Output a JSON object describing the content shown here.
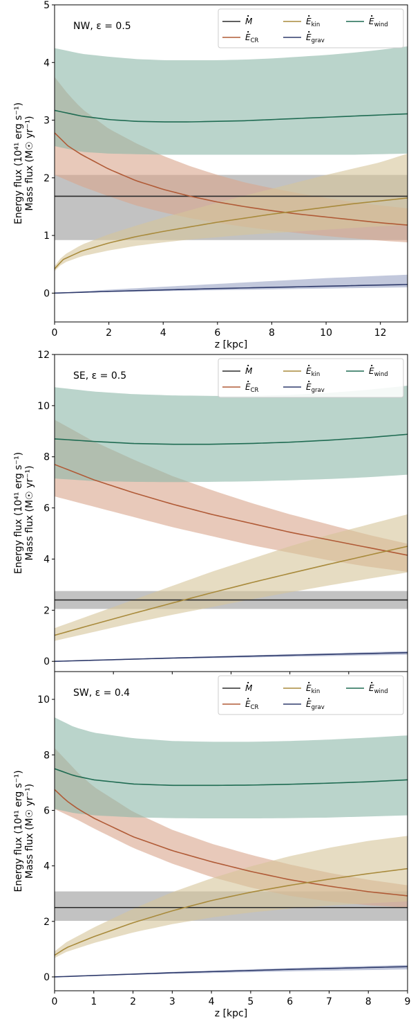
{
  "chart_data": [
    {
      "type": "line",
      "annotation": "NW, ε = 0.5",
      "xlabel": "z [kpc]",
      "ylabel_line1": "Energy flux (10⁴¹ erg s⁻¹)",
      "ylabel_line2": "Mass flux (M☉ yr⁻¹)",
      "xlim": [
        0,
        13
      ],
      "ylim": [
        -0.5,
        5
      ],
      "xticks": [
        0,
        2,
        4,
        6,
        8,
        10,
        12
      ],
      "yticks": [
        0,
        1,
        2,
        3,
        4,
        5
      ],
      "show_xticklabels": true,
      "grid": false,
      "legend_position": "top-right",
      "series": [
        {
          "key": "mdot",
          "name": "Ṁ",
          "color": "#2b2b2b",
          "band_color": "#999999",
          "x": [
            0,
            13
          ],
          "y": [
            1.68,
            1.68
          ],
          "lower": [
            0.92,
            0.92
          ],
          "upper": [
            2.05,
            2.05
          ]
        },
        {
          "key": "ecr",
          "name": "Ė_CR",
          "color": "#b05a36",
          "band_color": "#d9a58c",
          "x": [
            0,
            0.5,
            1,
            2,
            3,
            4,
            5,
            6,
            7,
            8,
            9,
            10,
            11,
            12,
            13
          ],
          "y": [
            2.78,
            2.55,
            2.4,
            2.15,
            1.95,
            1.8,
            1.68,
            1.58,
            1.5,
            1.43,
            1.37,
            1.32,
            1.27,
            1.22,
            1.18
          ],
          "lower": [
            2.05,
            1.95,
            1.85,
            1.68,
            1.52,
            1.4,
            1.3,
            1.22,
            1.15,
            1.09,
            1.04,
            0.99,
            0.95,
            0.91,
            0.88
          ],
          "upper": [
            3.75,
            3.45,
            3.2,
            2.85,
            2.6,
            2.38,
            2.2,
            2.05,
            1.92,
            1.82,
            1.73,
            1.65,
            1.58,
            1.52,
            1.47
          ]
        },
        {
          "key": "ekin",
          "name": "Ė_kin",
          "color": "#a88a3b",
          "band_color": "#d6c59a",
          "x": [
            0,
            0.3,
            1,
            2,
            3,
            4,
            5,
            6,
            7,
            8,
            9,
            10,
            11,
            12,
            13
          ],
          "y": [
            0.42,
            0.58,
            0.73,
            0.87,
            0.98,
            1.07,
            1.15,
            1.23,
            1.3,
            1.37,
            1.43,
            1.49,
            1.55,
            1.6,
            1.65
          ],
          "lower": [
            0.38,
            0.52,
            0.64,
            0.74,
            0.82,
            0.88,
            0.93,
            0.97,
            1.01,
            1.04,
            1.07,
            1.1,
            1.13,
            1.16,
            1.18
          ],
          "upper": [
            0.47,
            0.65,
            0.84,
            1.02,
            1.17,
            1.31,
            1.44,
            1.57,
            1.69,
            1.81,
            1.93,
            2.05,
            2.16,
            2.27,
            2.42
          ]
        },
        {
          "key": "egrav",
          "name": "Ė_grav",
          "color": "#2e3a6b",
          "band_color": "#9aa3c4",
          "x": [
            0,
            2,
            4,
            6,
            8,
            10,
            13
          ],
          "y": [
            0,
            0.03,
            0.055,
            0.08,
            0.1,
            0.12,
            0.15
          ],
          "lower": [
            0,
            0.02,
            0.035,
            0.05,
            0.065,
            0.08,
            0.1
          ],
          "upper": [
            0,
            0.06,
            0.11,
            0.16,
            0.21,
            0.26,
            0.32
          ]
        },
        {
          "key": "ewind",
          "name": "Ė_wind",
          "color": "#1f6b52",
          "band_color": "#8cb8a8",
          "x": [
            0,
            1,
            2,
            3,
            4,
            5,
            6,
            7,
            8,
            9,
            10,
            11,
            12,
            13
          ],
          "y": [
            3.17,
            3.07,
            3.01,
            2.98,
            2.97,
            2.97,
            2.98,
            2.99,
            3.01,
            3.03,
            3.05,
            3.07,
            3.09,
            3.11
          ],
          "lower": [
            2.55,
            2.45,
            2.42,
            2.41,
            2.4,
            2.4,
            2.4,
            2.4,
            2.4,
            2.4,
            2.4,
            2.4,
            2.41,
            2.42
          ],
          "upper": [
            4.25,
            4.15,
            4.1,
            4.06,
            4.04,
            4.04,
            4.04,
            4.05,
            4.07,
            4.1,
            4.13,
            4.17,
            4.22,
            4.28
          ]
        }
      ]
    },
    {
      "type": "line",
      "annotation": "SE, ε = 0.5",
      "xlabel": "",
      "ylabel_line1": "Energy flux (10⁴¹ erg s⁻¹)",
      "ylabel_line2": "Mass flux (M☉ yr⁻¹)",
      "xlim": [
        0,
        9
      ],
      "ylim": [
        -0.4,
        12
      ],
      "xticks": [
        0,
        1.5,
        3,
        4.5,
        6,
        7.5,
        9
      ],
      "yticks": [
        0,
        2,
        4,
        6,
        8,
        10,
        12
      ],
      "show_xticklabels": false,
      "grid": false,
      "legend_position": "top-right",
      "series": [
        {
          "key": "mdot",
          "name": "Ṁ",
          "color": "#2b2b2b",
          "band_color": "#999999",
          "x": [
            0,
            9
          ],
          "y": [
            2.4,
            2.4
          ],
          "lower": [
            2.05,
            2.05
          ],
          "upper": [
            2.75,
            2.75
          ]
        },
        {
          "key": "ecr",
          "name": "Ė_CR",
          "color": "#b05a36",
          "band_color": "#d9a58c",
          "x": [
            0,
            1,
            2,
            3,
            4,
            5,
            6,
            7,
            8,
            9
          ],
          "y": [
            7.7,
            7.1,
            6.6,
            6.15,
            5.75,
            5.4,
            5.05,
            4.75,
            4.45,
            4.15
          ],
          "lower": [
            6.45,
            6.05,
            5.65,
            5.25,
            4.9,
            4.55,
            4.25,
            3.95,
            3.7,
            3.5
          ],
          "upper": [
            9.45,
            8.6,
            7.9,
            7.25,
            6.7,
            6.2,
            5.75,
            5.35,
            4.95,
            4.6
          ]
        },
        {
          "key": "ekin",
          "name": "Ė_kin",
          "color": "#a88a3b",
          "band_color": "#d6c59a",
          "x": [
            0,
            1,
            2,
            3,
            4,
            5,
            6,
            7,
            8,
            9
          ],
          "y": [
            1.02,
            1.45,
            1.87,
            2.28,
            2.68,
            3.07,
            3.44,
            3.8,
            4.15,
            4.5
          ],
          "lower": [
            0.8,
            1.15,
            1.5,
            1.82,
            2.12,
            2.42,
            2.7,
            2.97,
            3.23,
            3.48
          ],
          "upper": [
            1.3,
            1.85,
            2.4,
            2.95,
            3.5,
            4.0,
            4.5,
            4.95,
            5.35,
            5.75
          ]
        },
        {
          "key": "egrav",
          "name": "Ė_grav",
          "color": "#2e3a6b",
          "band_color": "#9aa3c4",
          "x": [
            0,
            3,
            6,
            9
          ],
          "y": [
            0,
            0.13,
            0.24,
            0.34
          ],
          "lower": [
            0,
            0.1,
            0.18,
            0.26
          ],
          "upper": [
            0,
            0.15,
            0.28,
            0.4
          ]
        },
        {
          "key": "ewind",
          "name": "Ė_wind",
          "color": "#1f6b52",
          "band_color": "#8cb8a8",
          "x": [
            0,
            1,
            2,
            3,
            4,
            5,
            6,
            7,
            8,
            9
          ],
          "y": [
            8.7,
            8.6,
            8.52,
            8.49,
            8.49,
            8.52,
            8.57,
            8.65,
            8.75,
            8.88
          ],
          "lower": [
            7.15,
            7.05,
            7.02,
            7.01,
            7.02,
            7.04,
            7.08,
            7.13,
            7.2,
            7.3
          ],
          "upper": [
            10.72,
            10.55,
            10.45,
            10.4,
            10.38,
            10.38,
            10.42,
            10.5,
            10.62,
            10.78
          ]
        }
      ]
    },
    {
      "type": "line",
      "annotation": "SW, ε = 0.4",
      "xlabel": "z [kpc]",
      "ylabel_line1": "Energy flux (10⁴¹ erg s⁻¹)",
      "ylabel_line2": "Mass flux (M☉ yr⁻¹)",
      "xlim": [
        0,
        9
      ],
      "ylim": [
        -0.5,
        11
      ],
      "xticks": [
        0,
        1,
        2,
        3,
        4,
        5,
        6,
        7,
        8,
        9
      ],
      "yticks": [
        0,
        2,
        4,
        6,
        8,
        10
      ],
      "show_xticklabels": true,
      "grid": false,
      "legend_position": "top-right",
      "series": [
        {
          "key": "mdot",
          "name": "Ṁ",
          "color": "#2b2b2b",
          "band_color": "#999999",
          "x": [
            0,
            9
          ],
          "y": [
            2.5,
            2.5
          ],
          "lower": [
            2.02,
            2.02
          ],
          "upper": [
            3.08,
            3.08
          ]
        },
        {
          "key": "ecr",
          "name": "Ė_CR",
          "color": "#b05a36",
          "band_color": "#d9a58c",
          "x": [
            0,
            0.3,
            0.6,
            1,
            2,
            3,
            4,
            5,
            6,
            7,
            8,
            9
          ],
          "y": [
            6.75,
            6.35,
            6.05,
            5.72,
            5.05,
            4.55,
            4.15,
            3.8,
            3.5,
            3.27,
            3.07,
            2.92
          ],
          "lower": [
            6.05,
            5.85,
            5.65,
            5.35,
            4.65,
            4.08,
            3.6,
            3.22,
            2.92,
            2.72,
            2.58,
            2.5
          ],
          "upper": [
            8.25,
            7.8,
            7.35,
            6.85,
            5.95,
            5.3,
            4.8,
            4.4,
            4.05,
            3.75,
            3.5,
            3.3
          ]
        },
        {
          "key": "ekin",
          "name": "Ė_kin",
          "color": "#a88a3b",
          "band_color": "#d6c59a",
          "x": [
            0,
            0.3,
            1,
            2,
            3,
            4,
            5,
            6,
            7,
            8,
            9
          ],
          "y": [
            0.78,
            1.05,
            1.45,
            1.95,
            2.38,
            2.75,
            3.05,
            3.3,
            3.52,
            3.72,
            3.9
          ],
          "lower": [
            0.68,
            0.9,
            1.22,
            1.6,
            1.9,
            2.14,
            2.32,
            2.46,
            2.57,
            2.65,
            2.72
          ],
          "upper": [
            0.92,
            1.25,
            1.78,
            2.45,
            3.05,
            3.55,
            3.98,
            4.35,
            4.65,
            4.9,
            5.08
          ]
        },
        {
          "key": "egrav",
          "name": "Ė_grav",
          "color": "#2e3a6b",
          "band_color": "#9aa3c4",
          "x": [
            0,
            3,
            6,
            9
          ],
          "y": [
            0,
            0.15,
            0.27,
            0.37
          ],
          "lower": [
            0,
            0.11,
            0.2,
            0.27
          ],
          "upper": [
            0,
            0.18,
            0.32,
            0.43
          ]
        },
        {
          "key": "ewind",
          "name": "Ė_wind",
          "color": "#1f6b52",
          "band_color": "#8cb8a8",
          "x": [
            0,
            0.5,
            1,
            2,
            3,
            4,
            5,
            6,
            7,
            8,
            9
          ],
          "y": [
            7.5,
            7.25,
            7.1,
            6.95,
            6.9,
            6.9,
            6.91,
            6.94,
            6.98,
            7.03,
            7.1
          ],
          "lower": [
            6.05,
            5.9,
            5.82,
            5.75,
            5.72,
            5.71,
            5.71,
            5.72,
            5.74,
            5.78,
            5.82
          ],
          "upper": [
            9.35,
            9.0,
            8.8,
            8.6,
            8.5,
            8.47,
            8.47,
            8.5,
            8.55,
            8.62,
            8.7
          ]
        }
      ]
    }
  ]
}
